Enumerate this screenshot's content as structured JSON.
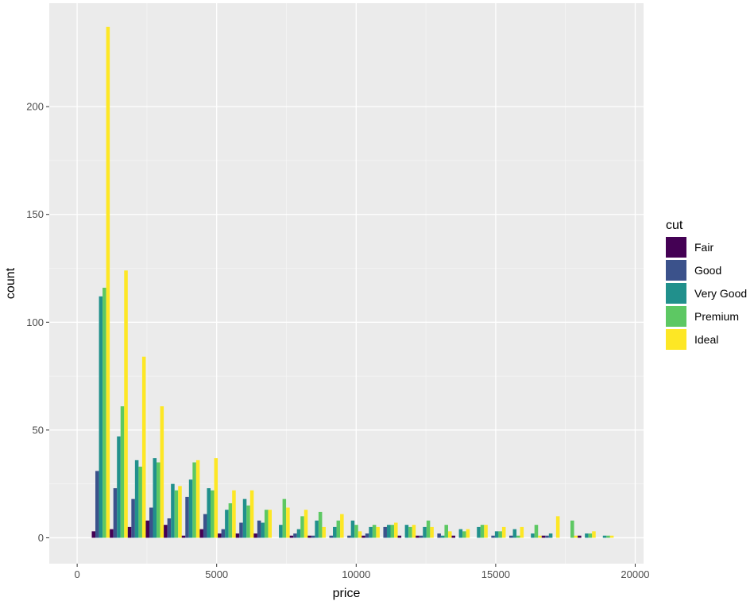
{
  "chart_data": {
    "type": "bar",
    "xlabel": "price",
    "ylabel": "count",
    "xlim": [
      -1000,
      20300
    ],
    "ylim": [
      -12,
      248
    ],
    "x_ticks": [
      0,
      5000,
      10000,
      15000,
      20000
    ],
    "x_tick_labels": [
      "0",
      "5000",
      "10000",
      "15000",
      "20000"
    ],
    "y_ticks": [
      0,
      50,
      100,
      150,
      200
    ],
    "y_tick_labels": [
      "0",
      "50",
      "100",
      "150",
      "200"
    ],
    "grid": true,
    "bin_width": 645,
    "x": [
      846,
      1491,
      2136,
      2781,
      3426,
      4071,
      4716,
      5361,
      6006,
      6651,
      7296,
      7941,
      8586,
      9231,
      9876,
      10521,
      11166,
      11811,
      12456,
      13101,
      13746,
      14391,
      15036,
      15681,
      16326,
      16971,
      17616,
      18261,
      18906
    ],
    "series": [
      {
        "name": "Fair",
        "color": "#440154",
        "values": [
          3,
          4,
          5,
          8,
          6,
          1,
          4,
          2,
          2,
          2,
          0,
          1,
          1,
          0,
          0,
          1,
          0,
          1,
          1,
          0,
          1,
          0,
          0,
          0,
          0,
          1,
          0,
          1,
          0
        ]
      },
      {
        "name": "Good",
        "color": "#3b528b",
        "values": [
          31,
          23,
          18,
          14,
          9,
          19,
          11,
          4,
          7,
          8,
          0,
          2,
          1,
          1,
          1,
          2,
          5,
          0,
          1,
          2,
          0,
          0,
          1,
          1,
          0,
          1,
          0,
          0,
          0
        ]
      },
      {
        "name": "Very Good",
        "color": "#21908c",
        "values": [
          112,
          47,
          36,
          37,
          25,
          27,
          23,
          13,
          18,
          7,
          6,
          4,
          8,
          5,
          8,
          5,
          6,
          6,
          5,
          1,
          4,
          5,
          3,
          4,
          2,
          2,
          0,
          2,
          1
        ]
      },
      {
        "name": "Premium",
        "color": "#5dc863",
        "values": [
          116,
          61,
          33,
          35,
          22,
          35,
          22,
          16,
          15,
          13,
          18,
          10,
          12,
          8,
          6,
          6,
          6,
          5,
          8,
          6,
          3,
          6,
          3,
          1,
          6,
          0,
          8,
          2,
          1
        ]
      },
      {
        "name": "Ideal",
        "color": "#fde725",
        "values": [
          237,
          124,
          84,
          61,
          24,
          36,
          37,
          22,
          22,
          13,
          14,
          13,
          5,
          11,
          3,
          5,
          7,
          6,
          5,
          3,
          4,
          6,
          5,
          5,
          1,
          10,
          1,
          3,
          1
        ]
      }
    ],
    "legend": {
      "title": "cut",
      "position": "right"
    },
    "colors": {
      "panel": "#ebebeb",
      "grid_major": "#ffffff",
      "grid_minor": "#f5f5f5",
      "tick": "#333333"
    }
  }
}
